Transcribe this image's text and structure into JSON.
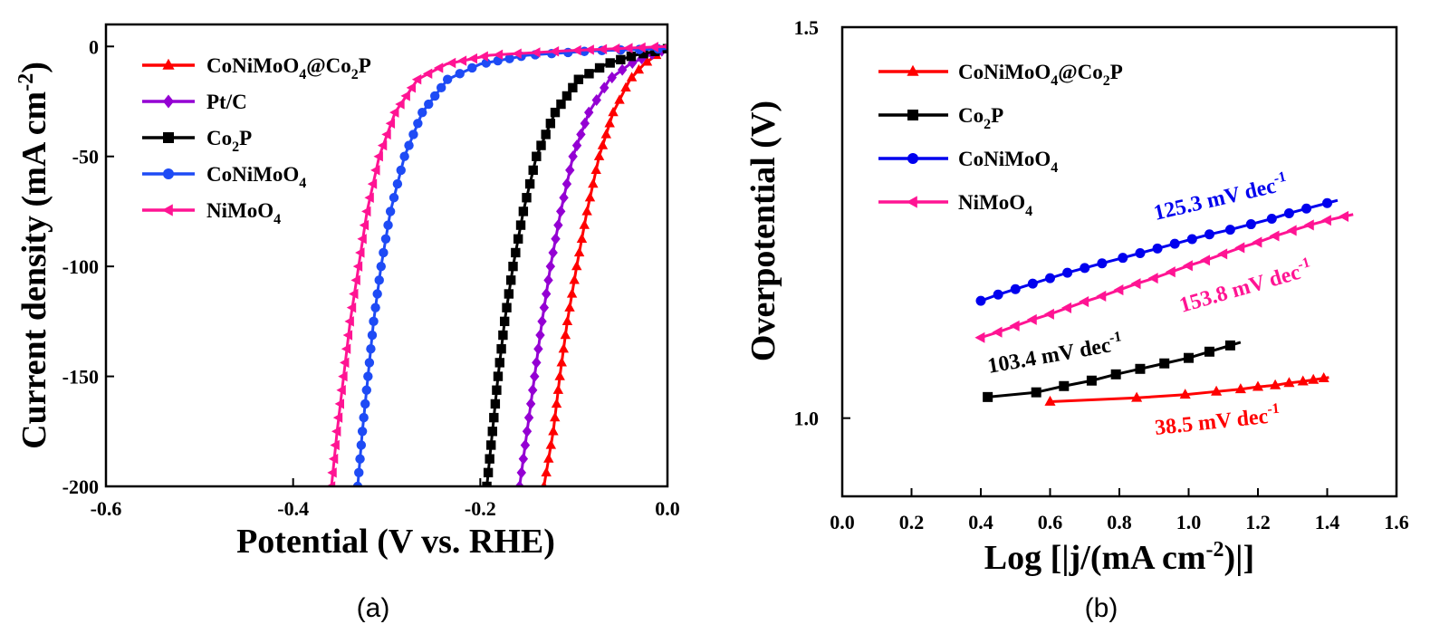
{
  "chart_data": [
    {
      "panel": "(a)",
      "type": "line",
      "title": "",
      "xlabel": "Potential (V vs. RHE)",
      "ylabel": "Current density (mA cm-2)",
      "xlim": [
        -0.6,
        0.0
      ],
      "ylim": [
        -200,
        10
      ],
      "xticks": [
        -0.6,
        -0.4,
        -0.2,
        0.0
      ],
      "xtick_labels": [
        "-0.6",
        "-0.4",
        "-0.2",
        "0.0"
      ],
      "yticks": [
        0,
        -50,
        -100,
        -150,
        -200
      ],
      "ytick_labels": [
        "0",
        "-50",
        "-100",
        "-150",
        "-200"
      ],
      "grid": false,
      "legend_position": "top-left",
      "series": [
        {
          "name": "CoNiMoO4@Co2P",
          "label_main": "CoNiMoO",
          "label_sub": "4",
          "label_rest": "@Co",
          "label_sub2": "2",
          "label_end": "P",
          "color": "#ff0000",
          "marker": "triangle-up",
          "x": [
            -0.132,
            -0.122,
            -0.115,
            -0.107,
            -0.097,
            -0.086,
            -0.073,
            -0.058,
            -0.04,
            -0.025,
            -0.012,
            -0.004
          ],
          "y": [
            -200,
            -175,
            -150,
            -125,
            -100,
            -75,
            -50,
            -30,
            -15,
            -8,
            -4,
            -2
          ]
        },
        {
          "name": "Pt/C",
          "label_main": "Pt/C",
          "label_sub": "",
          "label_rest": "",
          "label_sub2": "",
          "label_end": "",
          "color": "#9400d3",
          "marker": "diamond",
          "x": [
            -0.158,
            -0.15,
            -0.142,
            -0.134,
            -0.125,
            -0.114,
            -0.101,
            -0.084,
            -0.062,
            -0.04,
            -0.02,
            -0.006
          ],
          "y": [
            -200,
            -175,
            -150,
            -125,
            -100,
            -75,
            -50,
            -30,
            -15,
            -8,
            -4,
            -2
          ]
        },
        {
          "name": "Co2P",
          "label_main": "Co",
          "label_sub": "2",
          "label_rest": "P",
          "label_sub2": "",
          "label_end": "",
          "color": "#000000",
          "marker": "square",
          "x": [
            -0.193,
            -0.187,
            -0.181,
            -0.174,
            -0.165,
            -0.154,
            -0.14,
            -0.12,
            -0.095,
            -0.065,
            -0.035,
            -0.01
          ],
          "y": [
            -200,
            -175,
            -150,
            -125,
            -100,
            -75,
            -50,
            -30,
            -15,
            -8,
            -4,
            -2
          ]
        },
        {
          "name": "CoNiMoO4",
          "label_main": "CoNiMoO",
          "label_sub": "4",
          "label_rest": "",
          "label_sub2": "",
          "label_end": "",
          "color": "#1e4bf5",
          "marker": "circle",
          "x": [
            -0.331,
            -0.326,
            -0.32,
            -0.314,
            -0.306,
            -0.296,
            -0.281,
            -0.262,
            -0.235,
            -0.2,
            -0.15,
            -0.08,
            0.0
          ],
          "y": [
            -200,
            -175,
            -150,
            -125,
            -100,
            -75,
            -50,
            -30,
            -15,
            -8,
            -4,
            -2,
            -1
          ]
        },
        {
          "name": "NiMoO4",
          "label_main": "NiMoO",
          "label_sub": "4",
          "label_rest": "",
          "label_sub2": "",
          "label_end": "",
          "color": "#ff1493",
          "marker": "triangle-left",
          "x": [
            -0.359,
            -0.353,
            -0.346,
            -0.339,
            -0.33,
            -0.321,
            -0.308,
            -0.291,
            -0.267,
            -0.236,
            -0.19,
            -0.11,
            0.0
          ],
          "y": [
            -200,
            -175,
            -150,
            -125,
            -100,
            -75,
            -50,
            -30,
            -15,
            -8,
            -4,
            -2,
            0
          ]
        }
      ]
    },
    {
      "panel": "(b)",
      "type": "line",
      "title": "",
      "xlabel_pre": "Log [|j/(mA cm",
      "xlabel_sup": "-2",
      "xlabel_post": ")|]",
      "ylabel": "Overpotential (V)",
      "xlim": [
        0.0,
        1.6
      ],
      "ylim": [
        0.9,
        1.5
      ],
      "xticks": [
        0.0,
        0.2,
        0.4,
        0.6,
        0.8,
        1.0,
        1.2,
        1.4,
        1.6
      ],
      "xtick_labels": [
        "0.0",
        "0.2",
        "0.4",
        "0.6",
        "0.8",
        "1.0",
        "1.2",
        "1.4",
        "1.6"
      ],
      "yticks": [
        1.0,
        1.5
      ],
      "ytick_labels": [
        "1.0",
        "1.5"
      ],
      "grid": false,
      "legend_position": "top-left",
      "series": [
        {
          "name": "CoNiMoO4@Co2P",
          "label_main": "CoNiMoO",
          "label_sub": "4",
          "label_rest": "@Co",
          "label_sub2": "2",
          "label_end": "P",
          "color": "#ff0000",
          "marker": "triangle-up",
          "slope_label": "38.5 mV dec",
          "slope_sup": "-1",
          "x": [
            0.6,
            0.85,
            0.99,
            1.08,
            1.15,
            1.2,
            1.25,
            1.29,
            1.33,
            1.36,
            1.39
          ],
          "y": [
            1.021,
            1.026,
            1.03,
            1.034,
            1.037,
            1.04,
            1.042,
            1.045,
            1.047,
            1.049,
            1.051
          ]
        },
        {
          "name": "Co2P",
          "label_main": "Co",
          "label_sub": "2",
          "label_rest": "P",
          "label_sub2": "",
          "label_end": "",
          "color": "#000000",
          "marker": "square",
          "slope_label": "103.4 mV dec",
          "slope_sup": "-1",
          "x": [
            0.42,
            0.56,
            0.64,
            0.72,
            0.79,
            0.86,
            0.93,
            1.0,
            1.06,
            1.12
          ],
          "y": [
            1.027,
            1.033,
            1.041,
            1.048,
            1.056,
            1.063,
            1.07,
            1.077,
            1.085,
            1.093
          ]
        },
        {
          "name": "CoNiMoO4",
          "label_main": "CoNiMoO",
          "label_sub": "4",
          "label_rest": "",
          "label_sub2": "",
          "label_end": "",
          "color": "#0000ee",
          "marker": "circle",
          "slope_label": "125.3 mV dec",
          "slope_sup": "-1",
          "x": [
            0.4,
            0.45,
            0.5,
            0.55,
            0.6,
            0.65,
            0.7,
            0.75,
            0.81,
            0.86,
            0.91,
            0.96,
            1.01,
            1.06,
            1.12,
            1.18,
            1.24,
            1.29,
            1.34,
            1.4
          ],
          "y": [
            1.15,
            1.158,
            1.165,
            1.172,
            1.179,
            1.186,
            1.192,
            1.198,
            1.205,
            1.211,
            1.217,
            1.223,
            1.229,
            1.235,
            1.241,
            1.248,
            1.255,
            1.262,
            1.268,
            1.275
          ]
        },
        {
          "name": "NiMoO4",
          "label_main": "NiMoO",
          "label_sub": "4",
          "label_rest": "",
          "label_sub2": "",
          "label_end": "",
          "color": "#ff1493",
          "marker": "triangle-left",
          "slope_label": "153.8 mV dec",
          "slope_sup": "-1",
          "x": [
            0.4,
            0.45,
            0.5,
            0.55,
            0.6,
            0.65,
            0.7,
            0.75,
            0.8,
            0.85,
            0.9,
            0.95,
            1.0,
            1.05,
            1.1,
            1.15,
            1.2,
            1.25,
            1.3,
            1.35,
            1.4,
            1.45
          ],
          "y": [
            1.103,
            1.11,
            1.118,
            1.126,
            1.133,
            1.141,
            1.149,
            1.156,
            1.164,
            1.172,
            1.179,
            1.187,
            1.195,
            1.202,
            1.21,
            1.218,
            1.225,
            1.233,
            1.24,
            1.247,
            1.253,
            1.258
          ]
        }
      ]
    }
  ]
}
